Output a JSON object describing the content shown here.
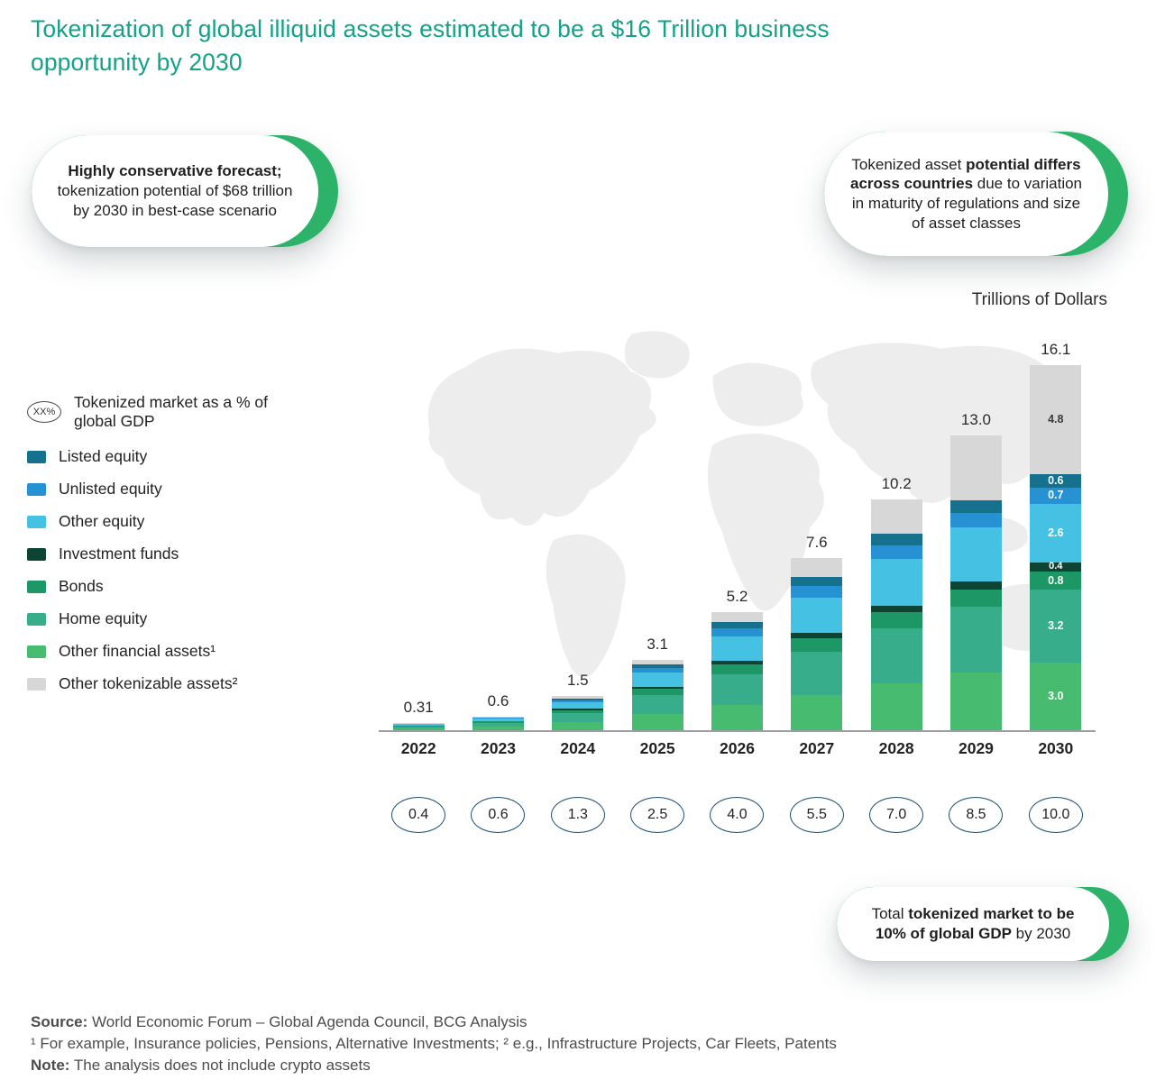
{
  "page": {
    "title_line1": "Tokenization of global illiquid assets estimated to be a $16 Trillion business",
    "title_line2": "opportunity by 2030",
    "units_label": "Trillions of Dollars"
  },
  "callouts": {
    "left": {
      "bold": "Highly conservative forecast;",
      "regular": "tokenization potential of $68 trillion by 2030 in best-case scenario"
    },
    "right": {
      "pre": "Tokenized asset ",
      "bold": "potential differs across countries",
      "post": " due to variation in maturity of regulations and size of asset classes"
    },
    "bottom": {
      "pre": "Total ",
      "bold": "tokenized market to be 10% of global GDP",
      "post": " by 2030"
    }
  },
  "legend": {
    "gdp_marker": {
      "oval_label": "XX%",
      "label": "Tokenized market as a % of global GDP"
    },
    "items": [
      {
        "label": "Listed equity",
        "color": "#15718E"
      },
      {
        "label": "Unlisted equity",
        "color": "#2692D4"
      },
      {
        "label": "Other equity",
        "color": "#45C2E3"
      },
      {
        "label": "Investment funds",
        "color": "#0D4433"
      },
      {
        "label": "Bonds",
        "color": "#1E9766"
      },
      {
        "label": "Home equity",
        "color": "#37AD8C"
      },
      {
        "label": "Other financial assets¹",
        "color": "#47BB6F"
      },
      {
        "label": "Other tokenizable assets²",
        "color": "#D7D7D7"
      }
    ]
  },
  "chart_data": {
    "type": "bar",
    "stacked": true,
    "title": "Tokenization of global illiquid assets estimated to be a $16 Trillion business opportunity by 2030",
    "ylabel": "Trillions of Dollars",
    "ylim": [
      0,
      16.1
    ],
    "grid": false,
    "legend_position": "left",
    "categories": [
      "2022",
      "2023",
      "2024",
      "2025",
      "2026",
      "2027",
      "2028",
      "2029",
      "2030"
    ],
    "totals": [
      0.31,
      0.6,
      1.5,
      3.1,
      5.2,
      7.6,
      10.2,
      13.0,
      16.1
    ],
    "total_labels": [
      "0.31",
      "0.6",
      "1.5",
      "3.1",
      "5.2",
      "7.6",
      "10.2",
      "13.0",
      "16.1"
    ],
    "gdp_percent_labels": [
      "0.4",
      "0.6",
      "1.3",
      "2.5",
      "4.0",
      "5.5",
      "7.0",
      "8.5",
      "10.0"
    ],
    "series": [
      {
        "name": "Other financial assets",
        "color": "#47BB6F",
        "values": [
          0.08,
          0.15,
          0.35,
          0.7,
          1.1,
          1.55,
          2.05,
          2.55,
          3.0
        ]
      },
      {
        "name": "Home equity",
        "color": "#37AD8C",
        "values": [
          0.1,
          0.18,
          0.42,
          0.85,
          1.35,
          1.9,
          2.45,
          2.9,
          3.2
        ]
      },
      {
        "name": "Bonds",
        "color": "#1E9766",
        "values": [
          0.03,
          0.05,
          0.12,
          0.28,
          0.45,
          0.6,
          0.7,
          0.75,
          0.8
        ]
      },
      {
        "name": "Investment funds",
        "color": "#0D4433",
        "values": [
          0.01,
          0.02,
          0.05,
          0.1,
          0.18,
          0.25,
          0.3,
          0.35,
          0.4
        ]
      },
      {
        "name": "Other equity",
        "color": "#45C2E3",
        "values": [
          0.05,
          0.1,
          0.28,
          0.6,
          1.05,
          1.55,
          2.05,
          2.4,
          2.6
        ]
      },
      {
        "name": "Unlisted equity",
        "color": "#2692D4",
        "values": [
          0.02,
          0.04,
          0.1,
          0.2,
          0.35,
          0.5,
          0.6,
          0.65,
          0.7
        ]
      },
      {
        "name": "Listed equity",
        "color": "#15718E",
        "values": [
          0.01,
          0.03,
          0.08,
          0.17,
          0.3,
          0.4,
          0.5,
          0.55,
          0.6
        ]
      },
      {
        "name": "Other tokenizable assets",
        "color": "#D7D7D7",
        "values": [
          0.01,
          0.03,
          0.1,
          0.2,
          0.42,
          0.85,
          1.55,
          2.85,
          4.8
        ]
      }
    ],
    "segment_labels_category": "2030"
  },
  "footer": {
    "source_label": "Source:",
    "source_text": " World Economic Forum – Global Agenda Council, BCG Analysis",
    "footnote": "¹ For example, Insurance policies, Pensions, Alternative Investments; ² e.g., Infrastructure Projects, Car Fleets, Patents",
    "note_label": "Note:",
    "note_text": " The analysis does not include crypto assets"
  }
}
